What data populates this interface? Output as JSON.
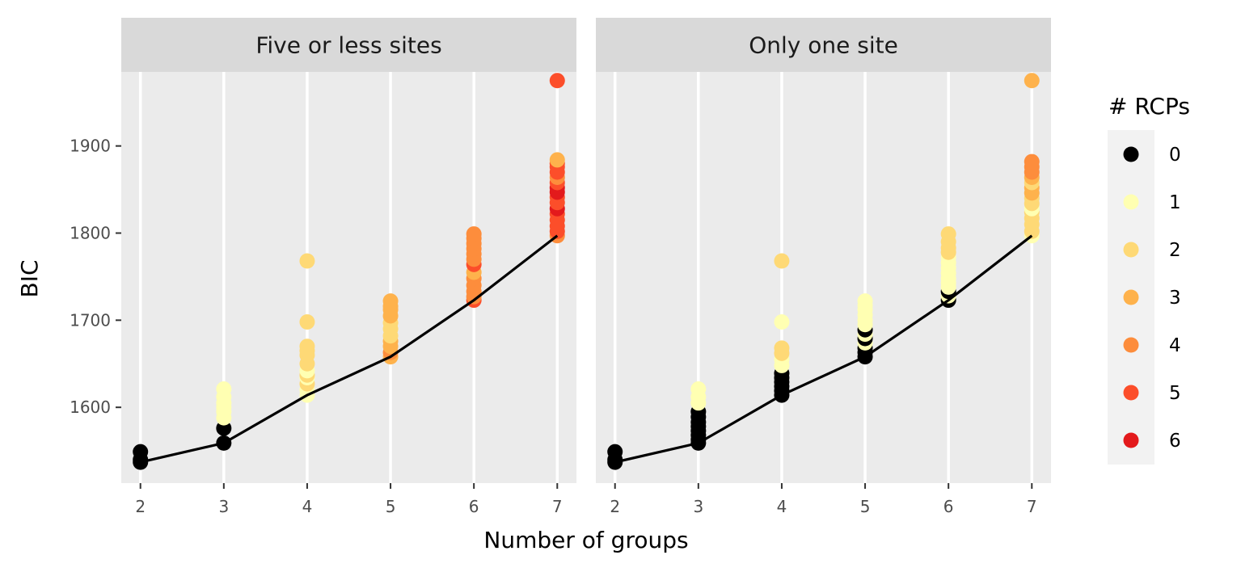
{
  "chart_data": {
    "type": "scatter",
    "xlabel": "Number of groups",
    "ylabel": "BIC",
    "xlim": [
      1.77,
      7.23
    ],
    "ylim": [
      1513,
      1985
    ],
    "x_ticks": [
      2,
      3,
      4,
      5,
      6,
      7
    ],
    "y_ticks": [
      1600,
      1700,
      1800,
      1900
    ],
    "legend": {
      "title": "# RCPs",
      "placement": "right",
      "entries": [
        {
          "label": "0",
          "color": "#000000"
        },
        {
          "label": "1",
          "color": "#FFFFB2"
        },
        {
          "label": "2",
          "color": "#FED976"
        },
        {
          "label": "3",
          "color": "#FEB24C"
        },
        {
          "label": "4",
          "color": "#FD8D3C"
        },
        {
          "label": "5",
          "color": "#FC4E2A"
        },
        {
          "label": "6",
          "color": "#E31A1C"
        }
      ]
    },
    "panels": [
      {
        "title": "Five or less sites",
        "line": {
          "x": [
            2,
            3,
            4,
            5,
            6,
            7
          ],
          "y": [
            1537,
            1559,
            1614,
            1658,
            1723,
            1797
          ]
        },
        "points": [
          [
            2,
            1537,
            0
          ],
          [
            2,
            1540,
            0
          ],
          [
            2,
            1549,
            0
          ],
          [
            3,
            1559,
            0
          ],
          [
            3,
            1576,
            0
          ],
          [
            3,
            1588,
            1
          ],
          [
            3,
            1595,
            1
          ],
          [
            3,
            1600,
            1
          ],
          [
            3,
            1605,
            1
          ],
          [
            3,
            1612,
            1
          ],
          [
            3,
            1621,
            1
          ],
          [
            4,
            1614,
            1
          ],
          [
            4,
            1620,
            1
          ],
          [
            4,
            1627,
            2
          ],
          [
            4,
            1634,
            1
          ],
          [
            4,
            1637,
            2
          ],
          [
            4,
            1642,
            1
          ],
          [
            4,
            1650,
            2
          ],
          [
            4,
            1660,
            2
          ],
          [
            4,
            1665,
            2
          ],
          [
            4,
            1670,
            2
          ],
          [
            4,
            1698,
            2
          ],
          [
            4,
            1768,
            2
          ],
          [
            5,
            1658,
            3
          ],
          [
            5,
            1663,
            4
          ],
          [
            5,
            1670,
            3
          ],
          [
            5,
            1676,
            3
          ],
          [
            5,
            1682,
            2
          ],
          [
            5,
            1690,
            2
          ],
          [
            5,
            1697,
            2
          ],
          [
            5,
            1705,
            3
          ],
          [
            5,
            1712,
            3
          ],
          [
            5,
            1716,
            3
          ],
          [
            5,
            1722,
            3
          ],
          [
            6,
            1723,
            5
          ],
          [
            6,
            1727,
            4
          ],
          [
            6,
            1733,
            4
          ],
          [
            6,
            1740,
            4
          ],
          [
            6,
            1748,
            4
          ],
          [
            6,
            1755,
            3
          ],
          [
            6,
            1764,
            5
          ],
          [
            6,
            1770,
            4
          ],
          [
            6,
            1776,
            4
          ],
          [
            6,
            1782,
            4
          ],
          [
            6,
            1788,
            4
          ],
          [
            6,
            1794,
            4
          ],
          [
            6,
            1799,
            4
          ],
          [
            7,
            1797,
            4
          ],
          [
            7,
            1802,
            5
          ],
          [
            7,
            1808,
            5
          ],
          [
            7,
            1815,
            5
          ],
          [
            7,
            1822,
            5
          ],
          [
            7,
            1828,
            6
          ],
          [
            7,
            1835,
            5
          ],
          [
            7,
            1841,
            5
          ],
          [
            7,
            1847,
            6
          ],
          [
            7,
            1852,
            6
          ],
          [
            7,
            1858,
            5
          ],
          [
            7,
            1864,
            4
          ],
          [
            7,
            1870,
            5
          ],
          [
            7,
            1876,
            5
          ],
          [
            7,
            1880,
            5
          ],
          [
            7,
            1884,
            3
          ],
          [
            7,
            1975,
            5
          ]
        ]
      },
      {
        "title": "Only one site",
        "line": {
          "x": [
            2,
            3,
            4,
            5,
            6,
            7
          ],
          "y": [
            1537,
            1559,
            1614,
            1658,
            1723,
            1797
          ]
        },
        "points": [
          [
            2,
            1537,
            0
          ],
          [
            2,
            1540,
            0
          ],
          [
            2,
            1549,
            0
          ],
          [
            3,
            1559,
            0
          ],
          [
            3,
            1563,
            0
          ],
          [
            3,
            1568,
            0
          ],
          [
            3,
            1573,
            0
          ],
          [
            3,
            1578,
            0
          ],
          [
            3,
            1583,
            0
          ],
          [
            3,
            1589,
            0
          ],
          [
            3,
            1595,
            0
          ],
          [
            3,
            1605,
            1
          ],
          [
            3,
            1612,
            1
          ],
          [
            3,
            1621,
            1
          ],
          [
            4,
            1614,
            0
          ],
          [
            4,
            1619,
            0
          ],
          [
            4,
            1624,
            0
          ],
          [
            4,
            1629,
            0
          ],
          [
            4,
            1634,
            0
          ],
          [
            4,
            1639,
            0
          ],
          [
            4,
            1648,
            1
          ],
          [
            4,
            1655,
            1
          ],
          [
            4,
            1662,
            2
          ],
          [
            4,
            1668,
            2
          ],
          [
            4,
            1698,
            1
          ],
          [
            4,
            1768,
            2
          ],
          [
            5,
            1658,
            0
          ],
          [
            5,
            1663,
            0
          ],
          [
            5,
            1668,
            0
          ],
          [
            5,
            1674,
            1
          ],
          [
            5,
            1679,
            0
          ],
          [
            5,
            1684,
            1
          ],
          [
            5,
            1689,
            0
          ],
          [
            5,
            1695,
            1
          ],
          [
            5,
            1700,
            1
          ],
          [
            5,
            1706,
            1
          ],
          [
            5,
            1712,
            1
          ],
          [
            5,
            1717,
            1
          ],
          [
            5,
            1722,
            1
          ],
          [
            6,
            1723,
            0
          ],
          [
            6,
            1728,
            1
          ],
          [
            6,
            1733,
            0
          ],
          [
            6,
            1738,
            1
          ],
          [
            6,
            1743,
            1
          ],
          [
            6,
            1748,
            1
          ],
          [
            6,
            1754,
            1
          ],
          [
            6,
            1760,
            1
          ],
          [
            6,
            1766,
            1
          ],
          [
            6,
            1772,
            1
          ],
          [
            6,
            1778,
            2
          ],
          [
            6,
            1783,
            2
          ],
          [
            6,
            1790,
            2
          ],
          [
            6,
            1799,
            2
          ],
          [
            7,
            1797,
            1
          ],
          [
            7,
            1802,
            2
          ],
          [
            7,
            1810,
            2
          ],
          [
            7,
            1817,
            2
          ],
          [
            7,
            1824,
            2
          ],
          [
            7,
            1828,
            1
          ],
          [
            7,
            1834,
            2
          ],
          [
            7,
            1840,
            2
          ],
          [
            7,
            1846,
            3
          ],
          [
            7,
            1852,
            3
          ],
          [
            7,
            1858,
            2
          ],
          [
            7,
            1864,
            3
          ],
          [
            7,
            1870,
            4
          ],
          [
            7,
            1876,
            4
          ],
          [
            7,
            1882,
            4
          ],
          [
            7,
            1975,
            3
          ]
        ]
      }
    ]
  }
}
